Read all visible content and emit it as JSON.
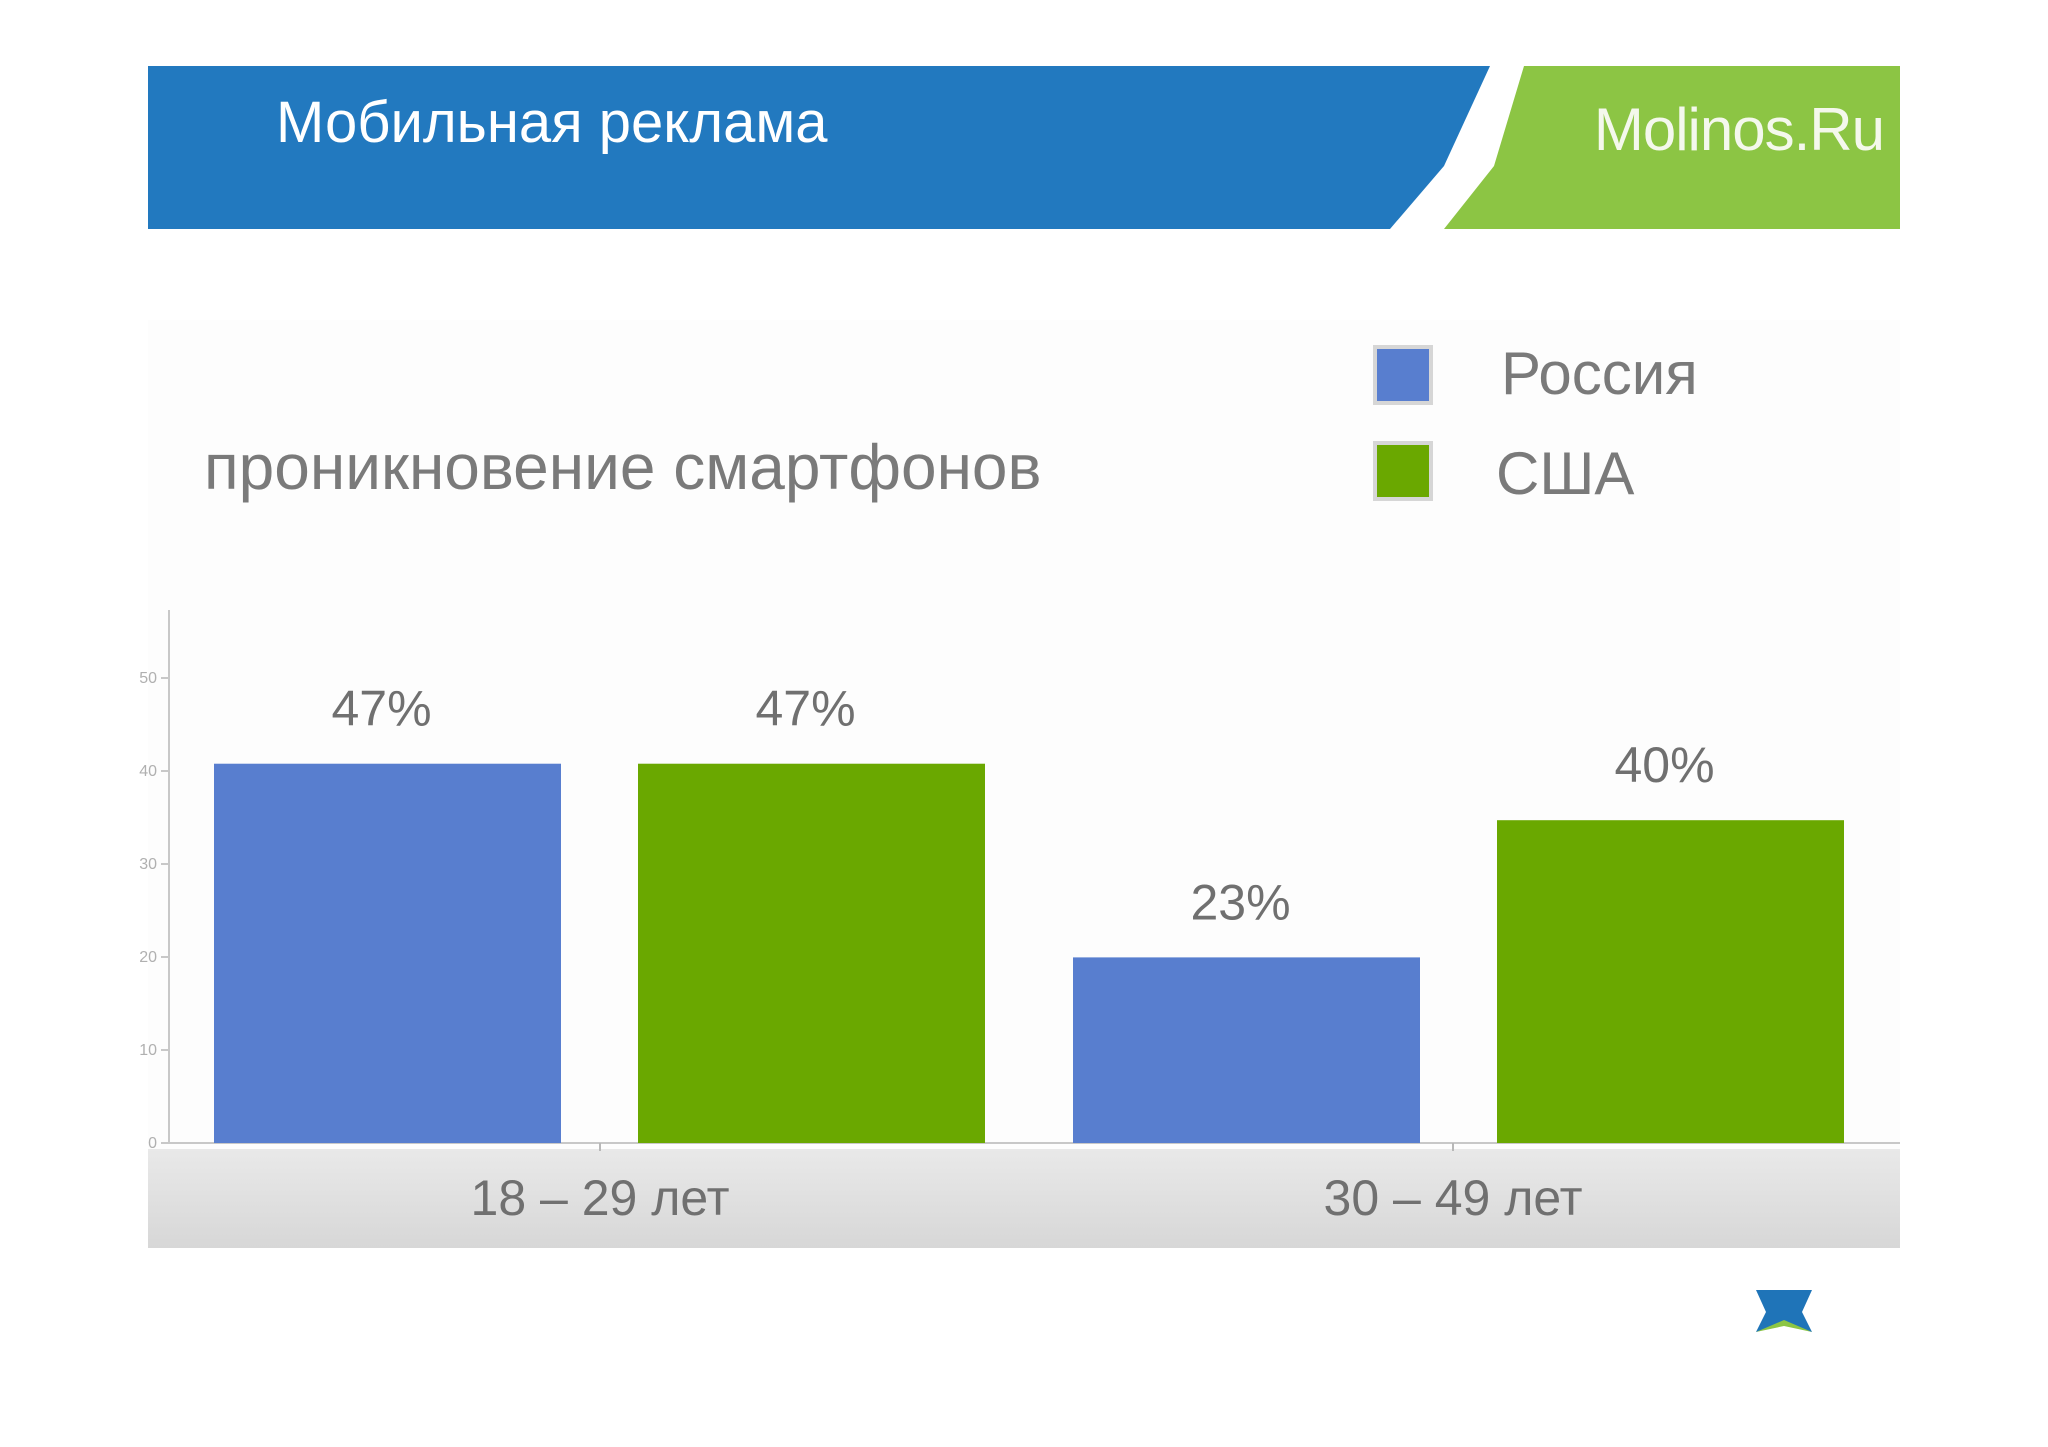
{
  "header": {
    "title": "Мобильная реклама",
    "brand": "Molinos.Ru",
    "colors": {
      "blue": "#2279bf",
      "green": "#8cc544"
    }
  },
  "chart_data": {
    "type": "bar",
    "title": "проникновение смартфонов",
    "categories": [
      "18 – 29 лет",
      "30 – 49 лет"
    ],
    "series": [
      {
        "name": "Россия",
        "values": [
          47,
          23
        ],
        "labels": [
          "47%",
          "23%"
        ],
        "color": "#587ecf"
      },
      {
        "name": "США",
        "values": [
          47,
          40
        ],
        "labels": [
          "47%",
          "40%"
        ],
        "color": "#6aa800"
      }
    ],
    "ylim": [
      0,
      50
    ],
    "legend_position": "top-right",
    "grid": false
  },
  "footer": {
    "logo_icon": "molinos-star-icon"
  }
}
